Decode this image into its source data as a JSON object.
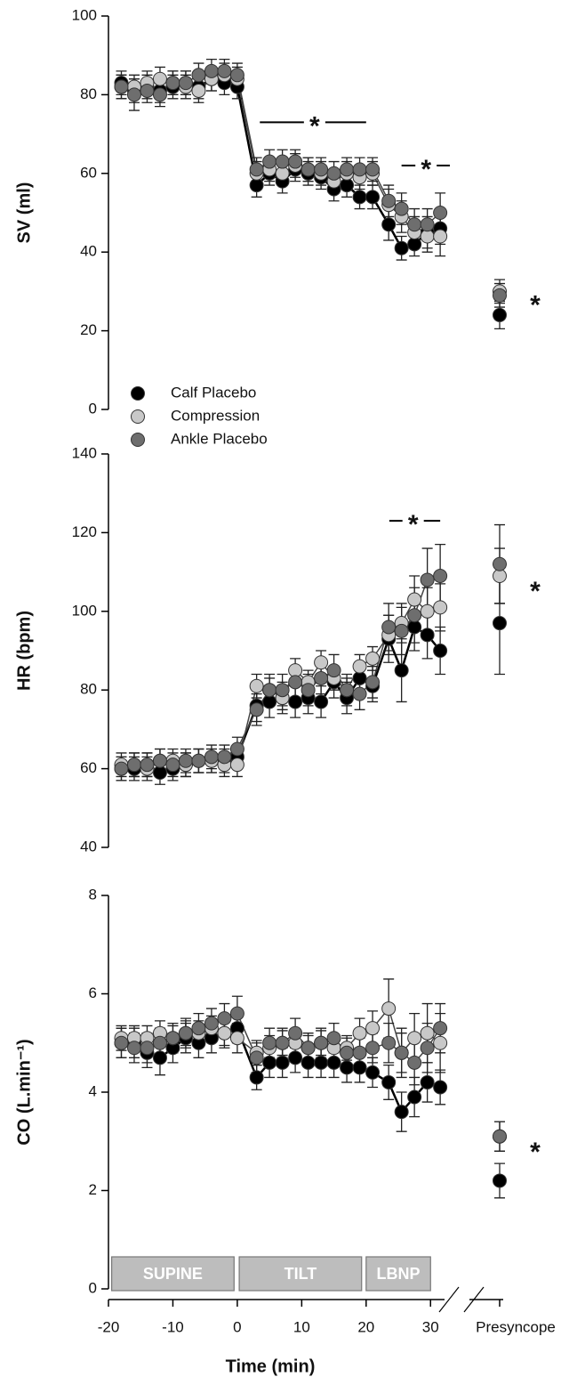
{
  "chart_data": [
    {
      "type": "line",
      "ylabel": "SV (ml)",
      "ylim": [
        0,
        100
      ],
      "yticks": [
        0,
        20,
        40,
        60,
        80,
        100
      ],
      "xlim": [
        -20,
        33
      ],
      "x": [
        -18,
        -16,
        -14,
        -12,
        -10,
        -8,
        -6,
        -4,
        -2,
        0,
        3,
        5,
        7,
        9,
        11,
        13,
        15,
        17,
        19,
        21,
        23.5,
        25.5,
        27.5,
        29.5,
        31.5
      ],
      "legend": true,
      "series": [
        {
          "name": "Calf Placebo",
          "color": "#000000",
          "values": [
            83,
            81,
            82,
            81,
            82,
            83,
            82,
            84,
            83,
            82,
            57,
            60,
            58,
            61,
            60,
            59,
            56,
            57,
            54,
            54,
            47,
            41,
            42,
            45,
            46
          ],
          "errors": [
            3,
            3,
            3,
            3,
            3,
            3,
            3,
            3,
            3,
            3,
            3,
            3,
            3,
            3,
            3,
            3,
            3,
            3,
            3,
            3,
            4,
            3,
            3,
            4,
            4
          ],
          "presyncope": {
            "value": 24,
            "error": 3.5
          }
        },
        {
          "name": "Compression",
          "color": "#c8c8c8",
          "values": [
            82,
            82,
            83,
            84,
            83,
            82,
            81,
            84,
            85,
            84,
            60,
            61,
            60,
            62,
            61,
            60,
            58,
            60,
            59,
            60,
            52,
            49,
            45,
            44,
            44
          ],
          "errors": [
            3,
            3,
            3,
            3,
            3,
            3,
            3,
            3,
            3,
            3,
            3,
            3,
            3,
            3,
            3,
            3,
            3,
            3,
            3,
            3,
            4,
            4,
            4,
            4,
            5
          ],
          "presyncope": {
            "value": 30,
            "error": 3
          }
        },
        {
          "name": "Ankle Placebo",
          "color": "#6e6e6e",
          "values": [
            82,
            80,
            81,
            80,
            83,
            83,
            85,
            86,
            86,
            85,
            61,
            63,
            63,
            63,
            61,
            61,
            60,
            61,
            61,
            61,
            53,
            51,
            47,
            47,
            50
          ],
          "errors": [
            3,
            4,
            3,
            3,
            3,
            3,
            3,
            3,
            3,
            3,
            3,
            3,
            3,
            3,
            3,
            3,
            3,
            3,
            3,
            3,
            4,
            4,
            4,
            4,
            5
          ],
          "presyncope": {
            "value": 29,
            "error": 3
          }
        }
      ],
      "annotations": [
        {
          "text": "*",
          "x": 12,
          "y": 73,
          "span": [
            3.5,
            20
          ]
        },
        {
          "text": "*",
          "x": 29.3,
          "y": 62,
          "span": [
            25.5,
            33
          ]
        }
      ],
      "presyncope_annotation": {
        "text": "*",
        "y": 27.5
      }
    },
    {
      "type": "line",
      "ylabel": "HR (bpm)",
      "ylim": [
        40,
        140
      ],
      "yticks": [
        40,
        60,
        80,
        100,
        120,
        140
      ],
      "xlim": [
        -20,
        33
      ],
      "x": [
        -18,
        -16,
        -14,
        -12,
        -10,
        -8,
        -6,
        -4,
        -2,
        0,
        3,
        5,
        7,
        9,
        11,
        13,
        15,
        17,
        19,
        21,
        23.5,
        25.5,
        27.5,
        29.5,
        31.5
      ],
      "series": [
        {
          "name": "Calf Placebo",
          "color": "#000000",
          "values": [
            60,
            60,
            61,
            59,
            60,
            61,
            62,
            62,
            62,
            63,
            76,
            77,
            78,
            77,
            78,
            77,
            82,
            78,
            83,
            81,
            93,
            85,
            96,
            94,
            90
          ],
          "errors": [
            3,
            3,
            3,
            3,
            3,
            3,
            3,
            3,
            3,
            3,
            4,
            4,
            4,
            4,
            4,
            4,
            4,
            4,
            4,
            4,
            6,
            8,
            6,
            6,
            6
          ],
          "presyncope": {
            "value": 97,
            "error": 13
          }
        },
        {
          "name": "Compression",
          "color": "#c8c8c8",
          "values": [
            61,
            61,
            60,
            62,
            62,
            61,
            62,
            62,
            61,
            61,
            81,
            80,
            78,
            85,
            82,
            87,
            83,
            80,
            86,
            88,
            94,
            97,
            103,
            100,
            101
          ],
          "errors": [
            3,
            3,
            3,
            3,
            3,
            3,
            3,
            3,
            3,
            3,
            3,
            3,
            3,
            3,
            3,
            3,
            3,
            3,
            3,
            3,
            5,
            5,
            6,
            6,
            6
          ],
          "presyncope": {
            "value": 109,
            "error": 7
          }
        },
        {
          "name": "Ankle Placebo",
          "color": "#6e6e6e",
          "values": [
            60,
            61,
            61,
            62,
            61,
            62,
            62,
            63,
            63,
            65,
            75,
            80,
            80,
            82,
            80,
            83,
            85,
            80,
            79,
            82,
            96,
            95,
            99,
            108,
            109
          ],
          "errors": [
            3,
            3,
            3,
            3,
            3,
            3,
            3,
            3,
            3,
            3,
            4,
            4,
            4,
            4,
            4,
            4,
            4,
            4,
            4,
            4,
            6,
            6,
            7,
            8,
            8
          ],
          "presyncope": {
            "value": 112,
            "error": 10
          }
        }
      ],
      "annotations": [
        {
          "text": "*",
          "x": 27.3,
          "y": 123,
          "span": [
            23.6,
            31.5
          ]
        }
      ],
      "presyncope_annotation": {
        "text": "*",
        "y": 106
      }
    },
    {
      "type": "line",
      "ylabel": "CO (L.min⁻¹)",
      "ylim": [
        0,
        8
      ],
      "yticks": [
        0,
        2,
        4,
        6,
        8
      ],
      "xlim": [
        -20,
        33
      ],
      "x": [
        -18,
        -16,
        -14,
        -12,
        -10,
        -8,
        -6,
        -4,
        -2,
        0,
        3,
        5,
        7,
        9,
        11,
        13,
        15,
        17,
        19,
        21,
        23.5,
        25.5,
        27.5,
        29.5,
        31.5
      ],
      "xlabel": "Time (min)",
      "xticks": [
        -20,
        -10,
        0,
        10,
        20,
        30
      ],
      "break_label": "Presyncope",
      "phases": [
        {
          "label": "SUPINE",
          "start": -19.5,
          "end": -0.5
        },
        {
          "label": "TILT",
          "start": 0.3,
          "end": 19.3
        },
        {
          "label": "LBNP",
          "start": 20,
          "end": 30
        }
      ],
      "series": [
        {
          "name": "Calf Placebo",
          "color": "#000000",
          "values": [
            5.0,
            5.0,
            4.8,
            4.7,
            4.9,
            5.1,
            5.0,
            5.1,
            5.2,
            5.3,
            4.3,
            4.6,
            4.6,
            4.7,
            4.6,
            4.6,
            4.6,
            4.5,
            4.5,
            4.4,
            4.2,
            3.6,
            3.9,
            4.2,
            4.1
          ],
          "errors": [
            0.3,
            0.3,
            0.3,
            0.35,
            0.3,
            0.3,
            0.3,
            0.3,
            0.3,
            0.3,
            0.25,
            0.3,
            0.3,
            0.3,
            0.3,
            0.3,
            0.3,
            0.3,
            0.3,
            0.3,
            0.35,
            0.4,
            0.4,
            0.4,
            0.35
          ],
          "presyncope": {
            "value": 2.2,
            "error": 0.35
          }
        },
        {
          "name": "Compression",
          "color": "#c8c8c8",
          "values": [
            5.1,
            5.1,
            5.1,
            5.2,
            5.1,
            5.2,
            5.2,
            5.3,
            5.2,
            5.1,
            4.8,
            4.9,
            5.0,
            5.0,
            4.9,
            5.0,
            4.9,
            4.9,
            5.2,
            5.3,
            5.7,
            4.8,
            5.1,
            5.2,
            5.0
          ],
          "errors": [
            0.25,
            0.25,
            0.25,
            0.25,
            0.25,
            0.25,
            0.25,
            0.25,
            0.25,
            0.3,
            0.25,
            0.25,
            0.25,
            0.25,
            0.25,
            0.25,
            0.25,
            0.25,
            0.3,
            0.35,
            0.6,
            0.5,
            0.5,
            0.6,
            0.6
          ],
          "presyncope": {
            "value": 3.1,
            "error": 0.3
          }
        },
        {
          "name": "Ankle Placebo",
          "color": "#6e6e6e",
          "values": [
            5.0,
            4.9,
            4.9,
            5.0,
            5.1,
            5.2,
            5.3,
            5.4,
            5.5,
            5.6,
            4.7,
            5.0,
            5.0,
            5.2,
            4.9,
            5.0,
            5.1,
            4.8,
            4.8,
            4.9,
            5.0,
            4.8,
            4.6,
            4.9,
            5.3
          ],
          "errors": [
            0.3,
            0.3,
            0.3,
            0.3,
            0.3,
            0.3,
            0.3,
            0.3,
            0.3,
            0.35,
            0.3,
            0.3,
            0.3,
            0.3,
            0.3,
            0.3,
            0.3,
            0.3,
            0.3,
            0.3,
            0.4,
            0.4,
            0.45,
            0.5,
            0.5
          ],
          "presyncope": {
            "value": 3.1,
            "error": 0.3
          }
        }
      ],
      "annotations": [],
      "presyncope_annotation": {
        "text": "*",
        "y": 2.86
      }
    }
  ]
}
